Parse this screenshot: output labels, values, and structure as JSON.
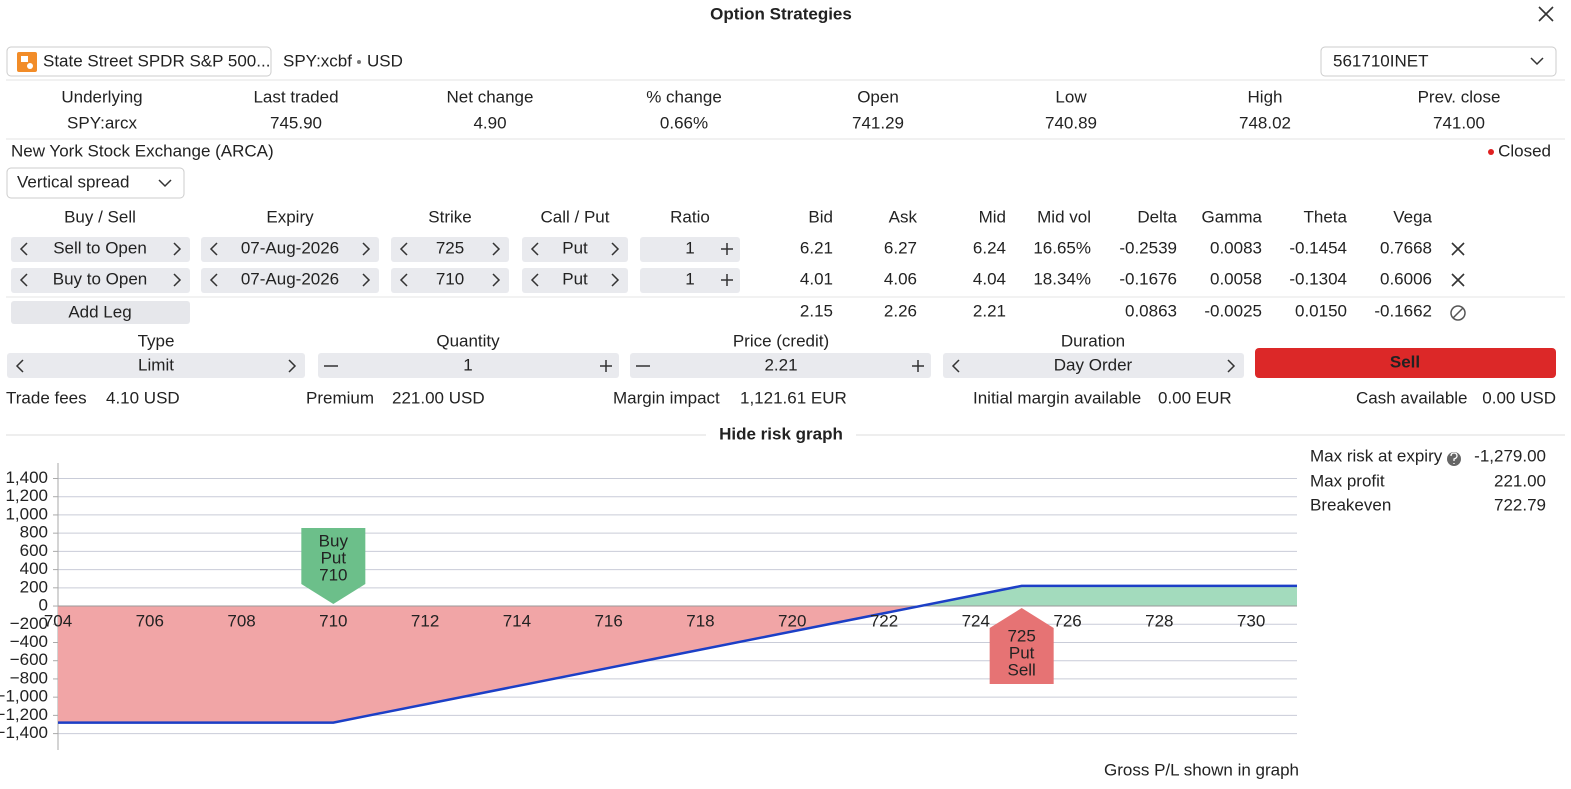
{
  "header": {
    "title": "Option Strategies"
  },
  "instrument": {
    "name": "State Street SPDR S&P 500...",
    "symbol": "SPY:xcbf",
    "currency": "USD",
    "account": "561710INET"
  },
  "quote": {
    "labels": [
      "Underlying",
      "Last traded",
      "Net change",
      "% change",
      "Open",
      "Low",
      "High",
      "Prev. close"
    ],
    "values": [
      "SPY:arcx",
      "745.90",
      "4.90",
      "0.66%",
      "741.29",
      "740.89",
      "748.02",
      "741.00"
    ]
  },
  "exchange": "New York Stock Exchange (ARCA)",
  "status": "Closed",
  "strategy": "Vertical spread",
  "legs": {
    "headers": [
      "Buy / Sell",
      "Expiry",
      "Strike",
      "Call / Put",
      "Ratio",
      "Bid",
      "Ask",
      "Mid",
      "Mid vol",
      "Delta",
      "Gamma",
      "Theta",
      "Vega"
    ],
    "rows": [
      [
        "Sell to Open",
        "07-Aug-2026",
        "725",
        "Put",
        "1",
        "6.21",
        "6.27",
        "6.24",
        "16.65%",
        "-0.2539",
        "0.0083",
        "-0.1454",
        "0.7668"
      ],
      [
        "Buy to Open",
        "07-Aug-2026",
        "710",
        "Put",
        "1",
        "4.01",
        "4.06",
        "4.04",
        "18.34%",
        "-0.1676",
        "0.0058",
        "-0.1304",
        "0.6006"
      ]
    ],
    "totals": {
      "add_leg": "Add Leg",
      "bid": "2.15",
      "ask": "2.26",
      "mid": "2.21",
      "delta": "0.0863",
      "gamma": "-0.0025",
      "theta": "0.0150",
      "vega": "-0.1662"
    }
  },
  "order": {
    "fields": [
      {
        "label": "Type",
        "value": "Limit"
      },
      {
        "label": "Quantity",
        "value": "1"
      },
      {
        "label": "Price (credit)",
        "value": "2.21"
      },
      {
        "label": "Duration",
        "value": "Day Order"
      }
    ],
    "submit": "Sell"
  },
  "costs": [
    {
      "label": "Trade fees",
      "value": "4.10 USD"
    },
    {
      "label": "Premium",
      "value": "221.00 USD"
    },
    {
      "label": "Margin impact",
      "value": "1,121.61 EUR"
    },
    {
      "label": "Initial margin available",
      "value": "0.00 EUR"
    },
    {
      "label": "Cash available",
      "value": "0.00 USD"
    }
  ],
  "risk_toggle": "Hide risk graph",
  "summary": [
    {
      "label": "Max risk at expiry",
      "value": "-1,279.00"
    },
    {
      "label": "Max profit",
      "value": "221.00"
    },
    {
      "label": "Breakeven",
      "value": "722.79"
    }
  ],
  "chart_data": {
    "type": "area",
    "x": [
      704,
      710,
      725,
      731
    ],
    "values": [
      -1279,
      -1279,
      221,
      221
    ],
    "color": "#1c3fc6",
    "profit_color": "#a3dbbd",
    "loss_color": "#f1a5a6",
    "xlim": [
      704,
      731
    ],
    "ylim": [
      -1580,
      1570
    ],
    "xticks": [
      704,
      706,
      708,
      710,
      712,
      714,
      716,
      718,
      720,
      722,
      724,
      726,
      728,
      730
    ],
    "yticks": [
      {
        "value": 1400,
        "label": "1,400"
      },
      {
        "value": 1200,
        "label": "1,200"
      },
      {
        "value": 1000,
        "label": "1,000"
      },
      800,
      600,
      400,
      200,
      0,
      {
        "value": -200,
        "label": "−200"
      },
      {
        "value": -400,
        "label": "−400"
      },
      {
        "value": -600,
        "label": "−600"
      },
      {
        "value": -800,
        "label": "−800"
      },
      {
        "value": -1000,
        "label": "−1,000"
      },
      {
        "value": -1200,
        "label": "−1,200"
      },
      {
        "value": -1400,
        "label": "−1,400"
      }
    ],
    "grid": true,
    "annotations": [
      {
        "x": 710,
        "text": [
          "Buy",
          "Put",
          "710"
        ],
        "color": "#6cbf8a"
      },
      {
        "x": 725,
        "text": [
          "725",
          "Put",
          "Sell"
        ],
        "color": "#e67374"
      }
    ]
  },
  "footnote": "Gross P/L shown in graph"
}
